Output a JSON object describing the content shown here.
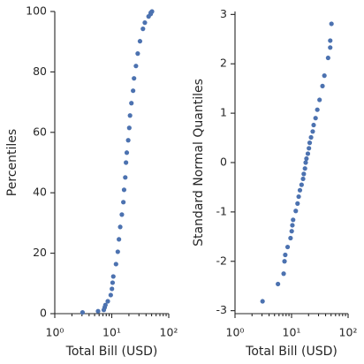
{
  "chart_data": [
    {
      "type": "scatter",
      "xlabel": "Total Bill (USD)",
      "ylabel": "Percentiles",
      "color": "#4c72b0",
      "xscale": "log",
      "xlim": [
        1,
        100
      ],
      "xticks": [
        {
          "value": 1,
          "label": "10⁰"
        },
        {
          "value": 10,
          "label": "10¹"
        },
        {
          "value": 100,
          "label": "10²"
        }
      ],
      "xminorticks": [
        2,
        3,
        4,
        5,
        6,
        7,
        8,
        9,
        20,
        30,
        40,
        50,
        60,
        70,
        80,
        90
      ],
      "ylim": [
        0,
        100
      ],
      "yticks": [
        0,
        20,
        40,
        60,
        80,
        100
      ],
      "x": [
        3.07,
        5.75,
        7.25,
        7.51,
        7.74,
        8.52,
        9.6,
        10.07,
        10.34,
        10.65,
        11.87,
        12.76,
        13.37,
        14.07,
        15.04,
        15.98,
        16.45,
        17.26,
        17.78,
        18.35,
        19.44,
        20.29,
        20.92,
        22.12,
        23.68,
        24.59,
        26.59,
        28.55,
        31.27,
        35.26,
        38.07,
        44.3,
        48.27,
        48.33,
        50.81
      ],
      "values": [
        0.41,
        0.82,
        1.23,
        2.05,
        2.87,
        4.1,
        6.15,
        8.2,
        10.25,
        12.3,
        16.39,
        20.49,
        24.59,
        28.69,
        32.79,
        36.89,
        40.98,
        45.08,
        50.0,
        53.28,
        57.38,
        61.48,
        65.57,
        69.67,
        73.77,
        77.87,
        81.97,
        86.07,
        90.16,
        94.26,
        96.31,
        98.36,
        99.18,
        99.59,
        100
      ]
    },
    {
      "type": "scatter",
      "xlabel": "Total Bill (USD)",
      "ylabel": "Standard Normal Quantiles",
      "color": "#4c72b0",
      "xscale": "log",
      "xlim": [
        1,
        100
      ],
      "xticks": [
        {
          "value": 1,
          "label": "10⁰"
        },
        {
          "value": 10,
          "label": "10¹"
        },
        {
          "value": 100,
          "label": "10²"
        }
      ],
      "xminorticks": [
        2,
        3,
        4,
        5,
        6,
        7,
        8,
        9,
        20,
        30,
        40,
        50,
        60,
        70,
        80,
        90
      ],
      "ylim": [
        -3.06,
        3.06
      ],
      "yticks": [
        -3,
        -2,
        -1,
        0,
        1,
        2,
        3
      ],
      "x": [
        3.07,
        5.75,
        7.25,
        7.51,
        7.74,
        8.52,
        9.6,
        10.07,
        10.34,
        10.65,
        11.87,
        12.76,
        13.37,
        14.07,
        15.04,
        15.98,
        16.45,
        17.26,
        17.78,
        18.35,
        19.44,
        20.29,
        20.92,
        22.12,
        23.68,
        24.59,
        26.59,
        28.55,
        31.27,
        35.26,
        38.07,
        44.3,
        48.27,
        48.33,
        50.81
      ],
      "values": [
        -2.81,
        -2.46,
        -2.25,
        -2.0,
        -1.87,
        -1.71,
        -1.53,
        -1.39,
        -1.27,
        -1.16,
        -0.98,
        -0.83,
        -0.69,
        -0.56,
        -0.45,
        -0.33,
        -0.23,
        -0.12,
        0.0,
        0.08,
        0.18,
        0.29,
        0.4,
        0.51,
        0.63,
        0.76,
        0.9,
        1.07,
        1.27,
        1.55,
        1.76,
        2.12,
        2.33,
        2.47,
        2.81
      ]
    }
  ]
}
